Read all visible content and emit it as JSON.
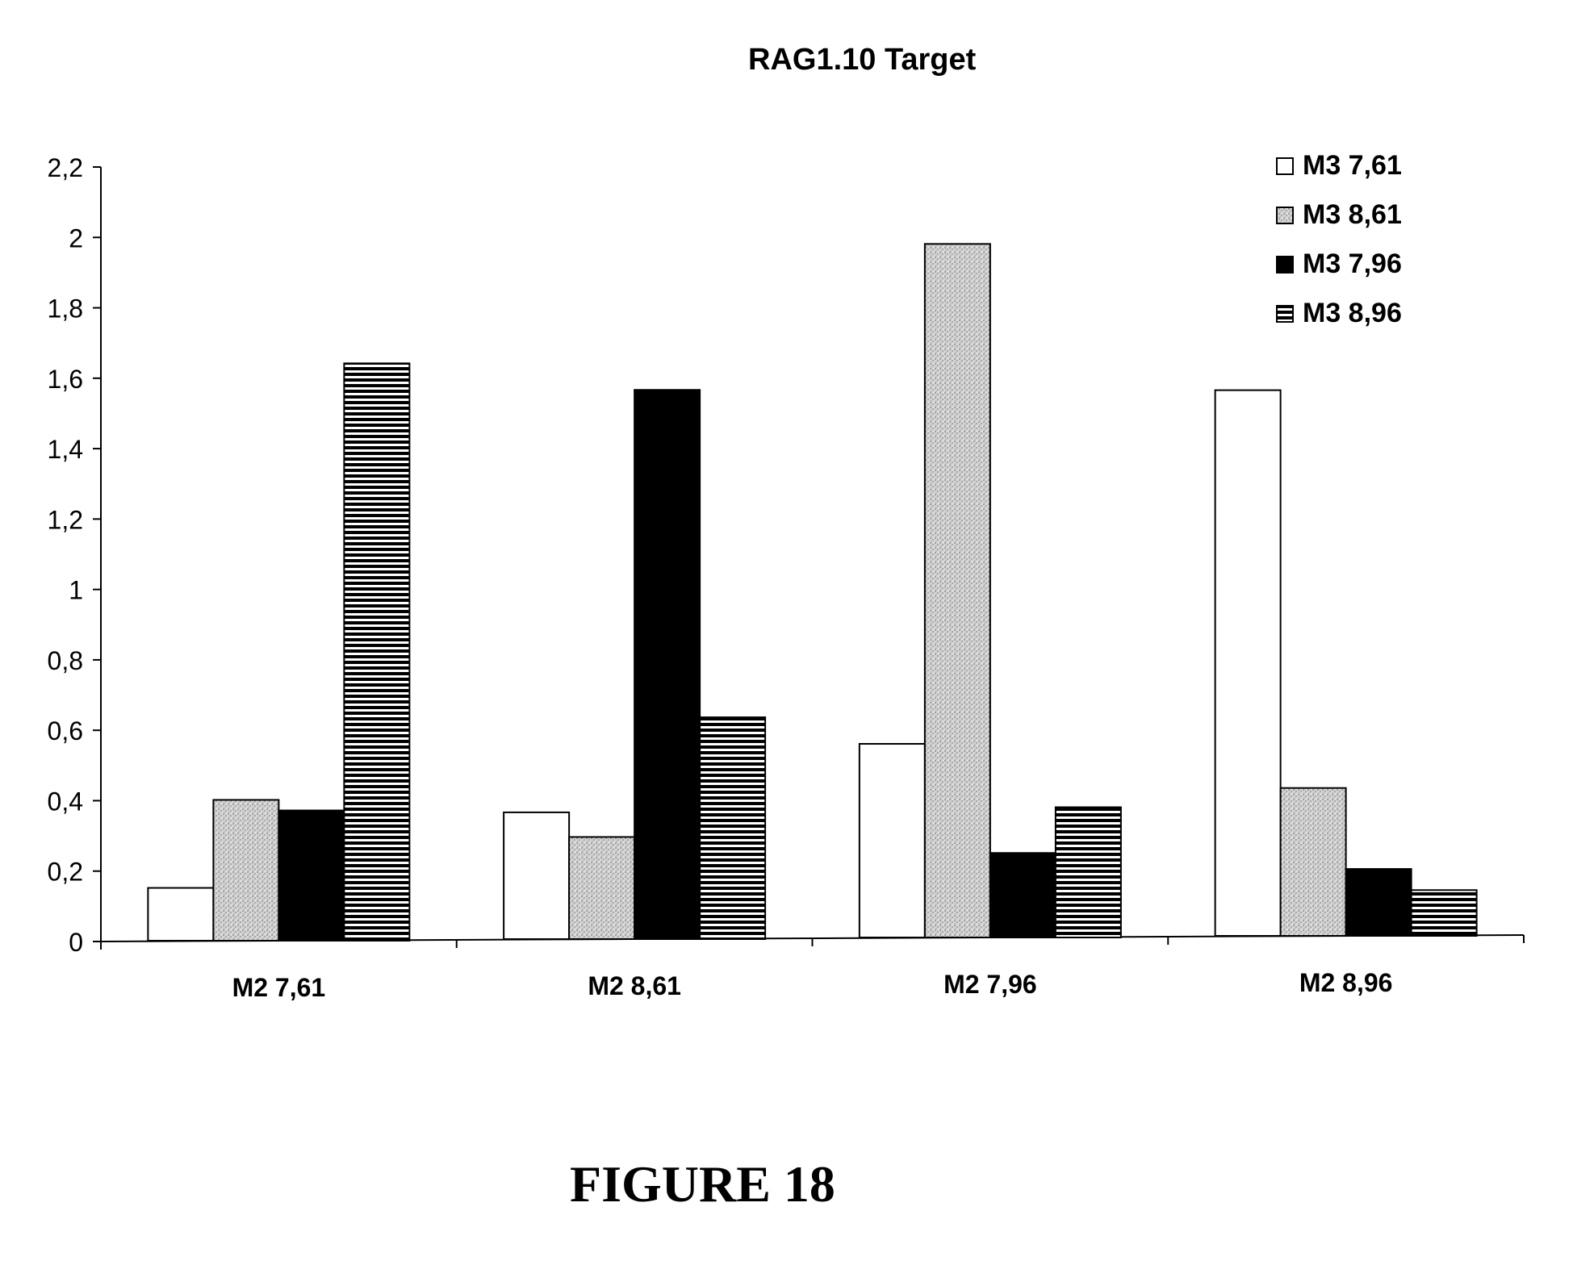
{
  "figure_caption": "FIGURE 18",
  "chart_data": {
    "type": "bar",
    "title": "RAG1.10 Target",
    "xlabel": "",
    "ylabel": "",
    "categories": [
      "M2 7,61",
      "M2 8,61",
      "M2 7,96",
      "M2 8,96"
    ],
    "series": [
      {
        "name": "M3 7,61",
        "values": [
          0.15,
          0.36,
          0.55,
          1.55
        ],
        "pattern": "white"
      },
      {
        "name": "M3 8,61",
        "values": [
          0.4,
          0.29,
          1.97,
          0.42
        ],
        "pattern": "stipple"
      },
      {
        "name": "M3 7,96",
        "values": [
          0.37,
          1.56,
          0.24,
          0.19
        ],
        "pattern": "solid"
      },
      {
        "name": "M3 8,96",
        "values": [
          1.64,
          0.63,
          0.37,
          0.13
        ],
        "pattern": "hstripes"
      }
    ],
    "ylim": [
      0,
      2.2
    ],
    "yticks": [
      "0",
      "0,2",
      "0,4",
      "0,6",
      "0,8",
      "1",
      "1,2",
      "1,4",
      "1,6",
      "1,8",
      "2",
      "2,2"
    ],
    "grid": false,
    "legend_position": "top-right",
    "colors": {
      "stroke": "#000000",
      "fill_solid": "#000000",
      "fill_white": "#ffffff",
      "stipple_base": "#d9d9d9"
    }
  }
}
